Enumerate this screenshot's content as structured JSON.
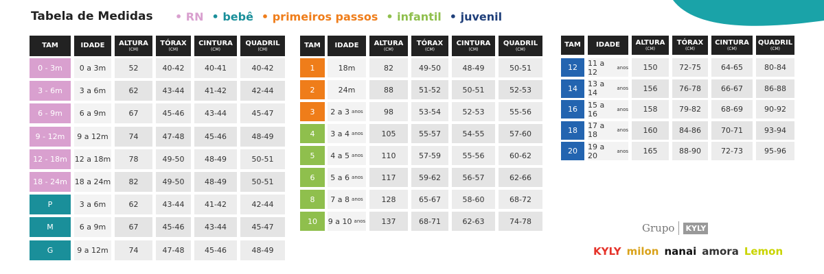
{
  "header": {
    "title": "Tabela de Medidas",
    "legend": [
      {
        "label": "RN",
        "color": "#d9a0cf"
      },
      {
        "label": "bebê",
        "color": "#1a8f9a"
      },
      {
        "label": "primeiros passos",
        "color": "#ef7d1a"
      },
      {
        "label": "infantil",
        "color": "#8fbf4d"
      },
      {
        "label": "juvenil",
        "color": "#1f3f7a"
      }
    ]
  },
  "tables": [
    {
      "headers": [
        {
          "label": "TAM"
        },
        {
          "label": "IDADE"
        },
        {
          "label": "ALTURA",
          "unit": "(CM)"
        },
        {
          "label": "TÓRAX",
          "unit": "(CM)"
        },
        {
          "label": "CINTURA",
          "unit": "(CM)"
        },
        {
          "label": "QUADRIL",
          "unit": "(CM)"
        }
      ],
      "rows": [
        {
          "tam": "0 - 3m",
          "color": "#d9a0cf",
          "idade": "0 a 3m",
          "values": [
            "52",
            "40-42",
            "40-41",
            "40-42"
          ]
        },
        {
          "tam": "3 - 6m",
          "color": "#d9a0cf",
          "idade": "3 a 6m",
          "values": [
            "62",
            "43-44",
            "41-42",
            "42-44"
          ]
        },
        {
          "tam": "6 - 9m",
          "color": "#d9a0cf",
          "idade": "6 a 9m",
          "values": [
            "67",
            "45-46",
            "43-44",
            "45-47"
          ]
        },
        {
          "tam": "9 - 12m",
          "color": "#d9a0cf",
          "idade": "9 a 12m",
          "values": [
            "74",
            "47-48",
            "45-46",
            "48-49"
          ]
        },
        {
          "tam": "12 - 18m",
          "color": "#d9a0cf",
          "idade": "12 a 18m",
          "values": [
            "78",
            "49-50",
            "48-49",
            "50-51"
          ]
        },
        {
          "tam": "18 - 24m",
          "color": "#d9a0cf",
          "idade": "18 a 24m",
          "values": [
            "82",
            "49-50",
            "48-49",
            "50-51"
          ]
        },
        {
          "tam": "P",
          "color": "#1a8f9a",
          "idade": "3 a 6m",
          "values": [
            "62",
            "43-44",
            "41-42",
            "42-44"
          ]
        },
        {
          "tam": "M",
          "color": "#1a8f9a",
          "idade": "6 a 9m",
          "values": [
            "67",
            "45-46",
            "43-44",
            "45-47"
          ]
        },
        {
          "tam": "G",
          "color": "#1a8f9a",
          "idade": "9 a 12m",
          "values": [
            "74",
            "47-48",
            "45-46",
            "48-49"
          ]
        }
      ]
    },
    {
      "headers": [
        {
          "label": "TAM"
        },
        {
          "label": "IDADE"
        },
        {
          "label": "ALTURA",
          "unit": "(CM)"
        },
        {
          "label": "TÓRAX",
          "unit": "(CM)"
        },
        {
          "label": "CINTURA",
          "unit": "(CM)"
        },
        {
          "label": "QUADRIL",
          "unit": "(CM)"
        }
      ],
      "rows": [
        {
          "tam": "1",
          "color": "#ef7d1a",
          "idade": "18m",
          "values": [
            "82",
            "49-50",
            "48-49",
            "50-51"
          ]
        },
        {
          "tam": "2",
          "color": "#ef7d1a",
          "idade": "24m",
          "values": [
            "88",
            "51-52",
            "50-51",
            "52-53"
          ]
        },
        {
          "tam": "3",
          "color": "#ef7d1a",
          "idade": "2 a 3",
          "idade_unit": "anos",
          "values": [
            "98",
            "53-54",
            "52-53",
            "55-56"
          ]
        },
        {
          "tam": "4",
          "color": "#8fbf4d",
          "idade": "3 a 4",
          "idade_unit": "anos",
          "values": [
            "105",
            "55-57",
            "54-55",
            "57-60"
          ]
        },
        {
          "tam": "5",
          "color": "#8fbf4d",
          "idade": "4 a 5",
          "idade_unit": "anos",
          "values": [
            "110",
            "57-59",
            "55-56",
            "60-62"
          ]
        },
        {
          "tam": "6",
          "color": "#8fbf4d",
          "idade": "5 a 6",
          "idade_unit": "anos",
          "values": [
            "117",
            "59-62",
            "56-57",
            "62-66"
          ]
        },
        {
          "tam": "8",
          "color": "#8fbf4d",
          "idade": "7 a 8",
          "idade_unit": "anos",
          "values": [
            "128",
            "65-67",
            "58-60",
            "68-72"
          ]
        },
        {
          "tam": "10",
          "color": "#8fbf4d",
          "idade": "9 a 10",
          "idade_unit": "anos",
          "values": [
            "137",
            "68-71",
            "62-63",
            "74-78"
          ]
        }
      ]
    },
    {
      "headers": [
        {
          "label": "TAM"
        },
        {
          "label": "IDADE"
        },
        {
          "label": "ALTURA",
          "unit": "(CM)"
        },
        {
          "label": "TÓRAX",
          "unit": "(CM)"
        },
        {
          "label": "CINTURA",
          "unit": "(CM)"
        },
        {
          "label": "QUADRIL",
          "unit": "(CM)"
        }
      ],
      "rows": [
        {
          "tam": "12",
          "color": "#2364b0",
          "idade": "11 a 12",
          "idade_unit": "anos",
          "values": [
            "150",
            "72-75",
            "64-65",
            "80-84"
          ]
        },
        {
          "tam": "14",
          "color": "#2364b0",
          "idade": "13 a 14",
          "idade_unit": "anos",
          "values": [
            "156",
            "76-78",
            "66-67",
            "86-88"
          ]
        },
        {
          "tam": "16",
          "color": "#2364b0",
          "idade": "15 a 16",
          "idade_unit": "anos",
          "values": [
            "158",
            "79-82",
            "68-69",
            "90-92"
          ]
        },
        {
          "tam": "18",
          "color": "#2364b0",
          "idade": "17 a 18",
          "idade_unit": "anos",
          "values": [
            "160",
            "84-86",
            "70-71",
            "93-94"
          ]
        },
        {
          "tam": "20",
          "color": "#2364b0",
          "idade": "19 a 20",
          "idade_unit": "anos",
          "values": [
            "165",
            "88-90",
            "72-73",
            "95-96"
          ]
        }
      ]
    }
  ],
  "brand": {
    "group": "Grupo",
    "group_logo": "KYLY",
    "brands": [
      {
        "label": "KYLY",
        "color": "#e5332a"
      },
      {
        "label": "milon",
        "color": "#d9a21b"
      },
      {
        "label": "nanai",
        "color": "#111111"
      },
      {
        "label": "amora",
        "color": "#333333"
      },
      {
        "label": "Lemon",
        "color": "#c9d400"
      }
    ]
  }
}
